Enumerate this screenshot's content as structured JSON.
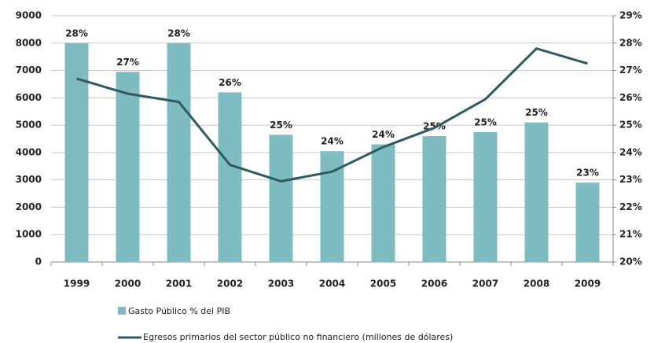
{
  "chart_data": {
    "type": "bar-line",
    "categories": [
      "1999",
      "2000",
      "2001",
      "2002",
      "2003",
      "2004",
      "2005",
      "2006",
      "2007",
      "2008",
      "2009"
    ],
    "series": [
      {
        "name": "Gasto Público % del PIB",
        "type": "bar",
        "axis": "y2",
        "color": "#7fbcc1",
        "values": [
          28,
          26.95,
          28,
          26.2,
          24.65,
          24.05,
          24.3,
          24.6,
          24.75,
          25.1,
          22.9
        ],
        "value_labels": [
          "28%",
          "27%",
          "28%",
          "26%",
          "25%",
          "24%",
          "24%",
          "25%",
          "25%",
          "25%",
          "23%"
        ]
      },
      {
        "name": "Egresos primarios del sector público no financiero (millones de dólares)",
        "type": "line",
        "color": "#2e5a63",
        "values": [
          6700,
          6150,
          5850,
          3550,
          2950,
          3300,
          4200,
          4900,
          5950,
          7800,
          7250
        ]
      }
    ],
    "ylim": [
      0,
      9000
    ],
    "yticks": [
      0,
      1000,
      2000,
      3000,
      4000,
      5000,
      6000,
      7000,
      8000,
      9000
    ],
    "y2lim": [
      20,
      29
    ],
    "y2ticks": [
      {
        "value": 20,
        "label": "20%"
      },
      {
        "value": 21,
        "label": "21%"
      },
      {
        "value": 22,
        "label": "22%"
      },
      {
        "value": 23,
        "label": "23%"
      },
      {
        "value": 24,
        "label": "24%"
      },
      {
        "value": 25,
        "label": "25%"
      },
      {
        "value": 26,
        "label": "26%"
      },
      {
        "value": 27,
        "label": "27%"
      },
      {
        "value": 28,
        "label": "28%"
      },
      {
        "value": 29,
        "label": "29%"
      }
    ],
    "grid": true
  }
}
